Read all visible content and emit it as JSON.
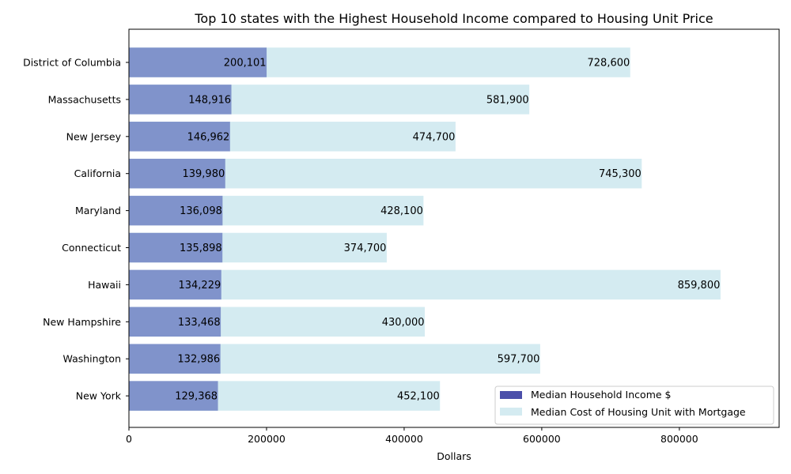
{
  "chart_data": {
    "type": "bar",
    "orientation": "horizontal",
    "title": "Top 10 states with the Highest Household Income compared to Housing Unit Price",
    "xlabel": "Dollars",
    "ylabel": "",
    "xlim": [
      0,
      945000
    ],
    "xticks": [
      0,
      200000,
      400000,
      600000,
      800000
    ],
    "xtick_labels": [
      "0",
      "200000",
      "400000",
      "600000",
      "800000"
    ],
    "grid": false,
    "legend_position": "lower-right",
    "categories": [
      "District of Columbia",
      "Massachusetts",
      "New Jersey",
      "California",
      "Maryland",
      "Connecticut",
      "Hawaii",
      "New Hampshire",
      "Washington",
      "New York"
    ],
    "series": [
      {
        "name": "Median Household Income $",
        "color": "#8093cb",
        "legend_color": "#4b4faa",
        "values": [
          200101,
          148916,
          146962,
          139980,
          136098,
          135898,
          134229,
          133468,
          132986,
          129368
        ],
        "value_labels": [
          "200,101",
          "148,916",
          "146,962",
          "139,980",
          "136,098",
          "135,898",
          "134,229",
          "133,468",
          "132,986",
          "129,368"
        ]
      },
      {
        "name": "Median Cost of Housing Unit with Mortgage",
        "color": "#d4ebf1",
        "legend_color": "#d4ebf1",
        "values": [
          728600,
          581900,
          474700,
          745300,
          428100,
          374700,
          859800,
          430000,
          597700,
          452100
        ],
        "value_labels": [
          "728,600",
          "581,900",
          "474,700",
          "745,300",
          "428,100",
          "374,700",
          "859,800",
          "430,000",
          "597,700",
          "452,100"
        ]
      }
    ]
  }
}
